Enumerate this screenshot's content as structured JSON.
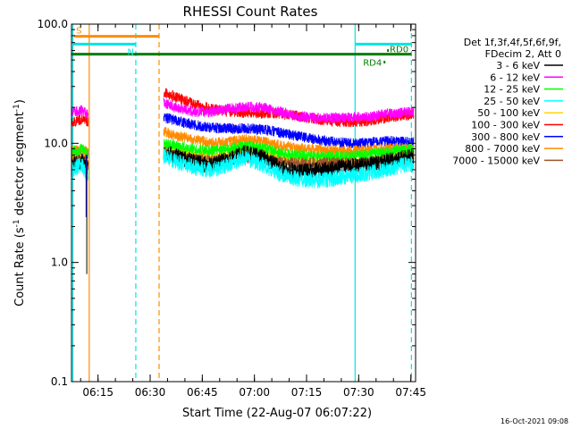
{
  "chart_data": {
    "type": "line",
    "title": "RHESSI Count Rates",
    "xlabel": "Start Time (22-Aug-07 06:07:22)",
    "ylabel": "Count Rate (s",
    "ylabel_sup1": "-1",
    "ylabel_mid": " detector segment",
    "ylabel_sup2": "-1",
    "ylabel_end": ")",
    "y_scale": "log",
    "ylim": [
      0.1,
      100
    ],
    "y_ticks": [
      {
        "value": 100,
        "label": "100.0"
      },
      {
        "value": 10,
        "label": "10.0"
      },
      {
        "value": 1,
        "label": "1.0"
      },
      {
        "value": 0.1,
        "label": "0.1"
      }
    ],
    "x_unit": "minutes after 06:07:22",
    "xlim": [
      0,
      99
    ],
    "x_ticks": [
      {
        "value": 7.63,
        "label": "06:15"
      },
      {
        "value": 22.63,
        "label": "06:30"
      },
      {
        "value": 37.63,
        "label": "06:45"
      },
      {
        "value": 52.63,
        "label": "07:00"
      },
      {
        "value": 67.63,
        "label": "07:15"
      },
      {
        "value": 82.63,
        "label": "07:30"
      },
      {
        "value": 97.63,
        "label": "07:45"
      }
    ],
    "legend_header": [
      "Det 1f,3f,4f,5f,6f,9f,",
      "FDecim 2, Att 0"
    ],
    "legend_placement": "right",
    "footer_date": "16-Oct-2021 09:08",
    "gaps": [
      [
        4.8,
        26.5
      ],
      [
        98.5,
        99
      ]
    ],
    "series": [
      {
        "name": "3 - 6 keV",
        "color": "#000000",
        "values": [
          [
            0,
            6.5
          ],
          [
            3,
            7.0
          ],
          [
            4.5,
            6.0
          ],
          [
            26.5,
            8.5
          ],
          [
            30,
            7.8
          ],
          [
            35,
            7.0
          ],
          [
            40,
            6.5
          ],
          [
            45,
            7.3
          ],
          [
            50,
            8.3
          ],
          [
            55,
            7.6
          ],
          [
            60,
            6.3
          ],
          [
            65,
            5.7
          ],
          [
            70,
            5.9
          ],
          [
            75,
            6.1
          ],
          [
            80,
            6.4
          ],
          [
            85,
            6.6
          ],
          [
            90,
            7.0
          ],
          [
            95,
            7.5
          ],
          [
            98.5,
            7.8
          ]
        ]
      },
      {
        "name": "6 - 12 keV",
        "color": "#ff00ff",
        "values": [
          [
            0,
            18
          ],
          [
            3,
            19
          ],
          [
            4.5,
            17.5
          ],
          [
            26.5,
            22
          ],
          [
            30,
            20
          ],
          [
            35,
            18.5
          ],
          [
            40,
            18.3
          ],
          [
            45,
            19.5
          ],
          [
            50,
            20.3
          ],
          [
            55,
            20
          ],
          [
            60,
            18.5
          ],
          [
            65,
            16.8
          ],
          [
            70,
            16.3
          ],
          [
            75,
            16.3
          ],
          [
            80,
            16.5
          ],
          [
            85,
            16.7
          ],
          [
            90,
            17.5
          ],
          [
            95,
            18
          ],
          [
            98.5,
            18.5
          ]
        ]
      },
      {
        "name": "12 - 25 keV",
        "color": "#00ff00",
        "values": [
          [
            0,
            8.5
          ],
          [
            3,
            9.0
          ],
          [
            4.5,
            8.5
          ],
          [
            26.5,
            10
          ],
          [
            30,
            9.6
          ],
          [
            35,
            9.0
          ],
          [
            40,
            8.6
          ],
          [
            45,
            9.0
          ],
          [
            50,
            9.5
          ],
          [
            55,
            9.2
          ],
          [
            60,
            8.3
          ],
          [
            65,
            7.9
          ],
          [
            70,
            7.8
          ],
          [
            75,
            7.8
          ],
          [
            80,
            7.8
          ],
          [
            85,
            8.0
          ],
          [
            90,
            8.4
          ],
          [
            95,
            8.8
          ],
          [
            98.5,
            9.0
          ]
        ]
      },
      {
        "name": "25 - 50 keV",
        "color": "#00ffff",
        "values": [
          [
            0,
            6.0
          ],
          [
            3,
            6.6
          ],
          [
            4.5,
            5.5
          ],
          [
            26.5,
            7.8
          ],
          [
            30,
            7.0
          ],
          [
            35,
            6.3
          ],
          [
            40,
            5.9
          ],
          [
            45,
            6.6
          ],
          [
            50,
            7.6
          ],
          [
            55,
            6.6
          ],
          [
            60,
            5.5
          ],
          [
            65,
            5.0
          ],
          [
            70,
            4.9
          ],
          [
            75,
            5.0
          ],
          [
            80,
            5.3
          ],
          [
            85,
            5.6
          ],
          [
            90,
            6.0
          ],
          [
            95,
            6.5
          ],
          [
            98.5,
            6.7
          ]
        ]
      },
      {
        "name": "50 - 100 keV",
        "color": "#ffd700",
        "values": [
          [
            0,
            7.5
          ],
          [
            3,
            7.8
          ],
          [
            4.5,
            7.0
          ],
          [
            26.5,
            9.2
          ],
          [
            30,
            8.6
          ],
          [
            35,
            8.0
          ],
          [
            40,
            7.6
          ],
          [
            45,
            8.1
          ],
          [
            50,
            8.8
          ],
          [
            55,
            8.3
          ],
          [
            60,
            7.4
          ],
          [
            65,
            7.0
          ],
          [
            70,
            6.9
          ],
          [
            75,
            6.9
          ],
          [
            80,
            7.0
          ],
          [
            85,
            7.1
          ],
          [
            90,
            7.5
          ],
          [
            95,
            7.9
          ],
          [
            98.5,
            8.1
          ]
        ]
      },
      {
        "name": "100 - 300 keV",
        "color": "#ff0000",
        "values": [
          [
            0,
            15
          ],
          [
            3,
            16
          ],
          [
            4.5,
            15
          ],
          [
            26.5,
            27
          ],
          [
            30,
            24.5
          ],
          [
            35,
            21.5
          ],
          [
            40,
            19.5
          ],
          [
            45,
            18.5
          ],
          [
            50,
            18
          ],
          [
            55,
            18
          ],
          [
            60,
            17.8
          ],
          [
            65,
            17
          ],
          [
            70,
            16
          ],
          [
            75,
            15.3
          ],
          [
            80,
            15
          ],
          [
            85,
            15.3
          ],
          [
            90,
            16.3
          ],
          [
            95,
            17
          ],
          [
            98.5,
            17.3
          ]
        ]
      },
      {
        "name": "300 - 800 keV",
        "color": "#0000ff",
        "values": [
          [
            0,
            8.3
          ],
          [
            3,
            8.5
          ],
          [
            4.5,
            8.0
          ],
          [
            26.5,
            16.5
          ],
          [
            30,
            15.5
          ],
          [
            35,
            14.3
          ],
          [
            40,
            13.5
          ],
          [
            45,
            13.3
          ],
          [
            50,
            13.3
          ],
          [
            55,
            13.1
          ],
          [
            60,
            12.3
          ],
          [
            65,
            11.5
          ],
          [
            70,
            10.8
          ],
          [
            75,
            10.3
          ],
          [
            80,
            10.0
          ],
          [
            85,
            10.0
          ],
          [
            90,
            10.5
          ],
          [
            95,
            10.3
          ],
          [
            98.5,
            10.2
          ]
        ]
      },
      {
        "name": "800 - 7000 keV",
        "color": "#ff8c00",
        "values": [
          [
            0,
            8.7
          ],
          [
            3,
            9.0
          ],
          [
            4.5,
            8.5
          ],
          [
            26.5,
            12.5
          ],
          [
            30,
            11.6
          ],
          [
            35,
            10.8
          ],
          [
            40,
            10.1
          ],
          [
            45,
            10.3
          ],
          [
            50,
            10.8
          ],
          [
            55,
            10.3
          ],
          [
            60,
            9.6
          ],
          [
            65,
            9.1
          ],
          [
            70,
            8.9
          ],
          [
            75,
            8.7
          ],
          [
            80,
            8.6
          ],
          [
            85,
            8.7
          ],
          [
            90,
            9.0
          ],
          [
            95,
            9.2
          ],
          [
            98.5,
            9.3
          ]
        ]
      },
      {
        "name": "7000 - 15000 keV",
        "color": "#a0522d",
        "values": [
          [
            0,
            7.2
          ],
          [
            3,
            7.4
          ],
          [
            4.5,
            7.0
          ],
          [
            26.5,
            8.0
          ],
          [
            30,
            7.7
          ],
          [
            35,
            7.4
          ],
          [
            40,
            7.2
          ],
          [
            45,
            7.3
          ],
          [
            50,
            7.5
          ],
          [
            55,
            7.3
          ],
          [
            60,
            7.0
          ],
          [
            65,
            6.9
          ],
          [
            70,
            6.9
          ],
          [
            75,
            6.9
          ],
          [
            80,
            6.9
          ],
          [
            85,
            7.0
          ],
          [
            90,
            7.1
          ],
          [
            95,
            7.2
          ],
          [
            98.5,
            7.3
          ]
        ]
      }
    ],
    "vertical_markers": [
      {
        "x": 0.4,
        "color": "#00e5e5",
        "style": "solid"
      },
      {
        "x": 5.1,
        "color": "#ff8c00",
        "style": "solid"
      },
      {
        "x": 18.5,
        "color": "#00e5e5",
        "style": "dashed"
      },
      {
        "x": 25.2,
        "color": "#ff8c00",
        "style": "dashed"
      },
      {
        "x": 81.6,
        "color": "#00e5e5",
        "style": "solid"
      },
      {
        "x": 97.8,
        "color": "#00e5e5",
        "style": "dashed"
      }
    ],
    "state_bars": [
      {
        "label": "S",
        "color": "#ff8c00",
        "x_from": 0.8,
        "x_to": 25.2,
        "y_value": 79
      },
      {
        "label": "N",
        "color": "#00e5e5",
        "x_from": 0.4,
        "x_to": 18.5,
        "y_value": 68
      },
      {
        "label": "",
        "color": "#00e5e5",
        "x_from": 81.6,
        "x_to": 97.8,
        "y_value": 68
      },
      {
        "label": "",
        "color": "#008000",
        "x_from": 0,
        "x_to": 97.8,
        "y_value": 56
      },
      {
        "label": "RD0",
        "color": "#008000",
        "x_from": 90.8,
        "x_to": 91.3,
        "y_value": 60
      },
      {
        "label": "RD4",
        "color": "#008000",
        "x_from": 89.8,
        "x_to": 90.3,
        "y_value": 48
      }
    ]
  }
}
